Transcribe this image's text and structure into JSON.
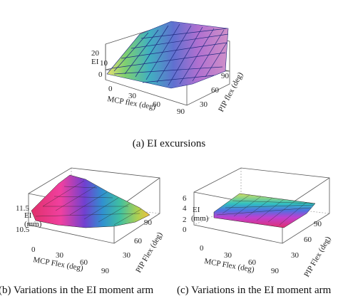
{
  "figure": {
    "top": {
      "axis_z_label": "EI",
      "z_ticks": [
        "20",
        "10",
        "0"
      ],
      "x_label": "MCP flex (deg)",
      "x_ticks": [
        "0",
        "30",
        "60",
        "90"
      ],
      "y_label": "PIP flex (deg)",
      "y_ticks": [
        "30",
        "60",
        "90"
      ],
      "caption": "(a) EI excursions"
    },
    "left": {
      "axis_z_label": "EI",
      "axis_z_unit": "(mm)",
      "z_ticks": [
        "11.5",
        "10.5"
      ],
      "x_label": "MCP Flex (deg)",
      "x_ticks": [
        "0",
        "30",
        "60",
        "90"
      ],
      "y_label": "PIP Flex (deg)",
      "y_ticks": [
        "30",
        "60",
        "90"
      ],
      "caption": "(b) Variations in the EI moment arm"
    },
    "right": {
      "axis_z_label": "EI",
      "axis_z_unit": "(mm)",
      "z_ticks": [
        "6",
        "4",
        "2",
        "0"
      ],
      "x_label": "MCP Flex (deg)",
      "x_ticks": [
        "0",
        "30",
        "60",
        "90"
      ],
      "y_label": "PIP Flex (deg)",
      "y_ticks": [
        "30",
        "60",
        "90"
      ],
      "caption": "(c) Variations in the EI moment arm"
    }
  }
}
